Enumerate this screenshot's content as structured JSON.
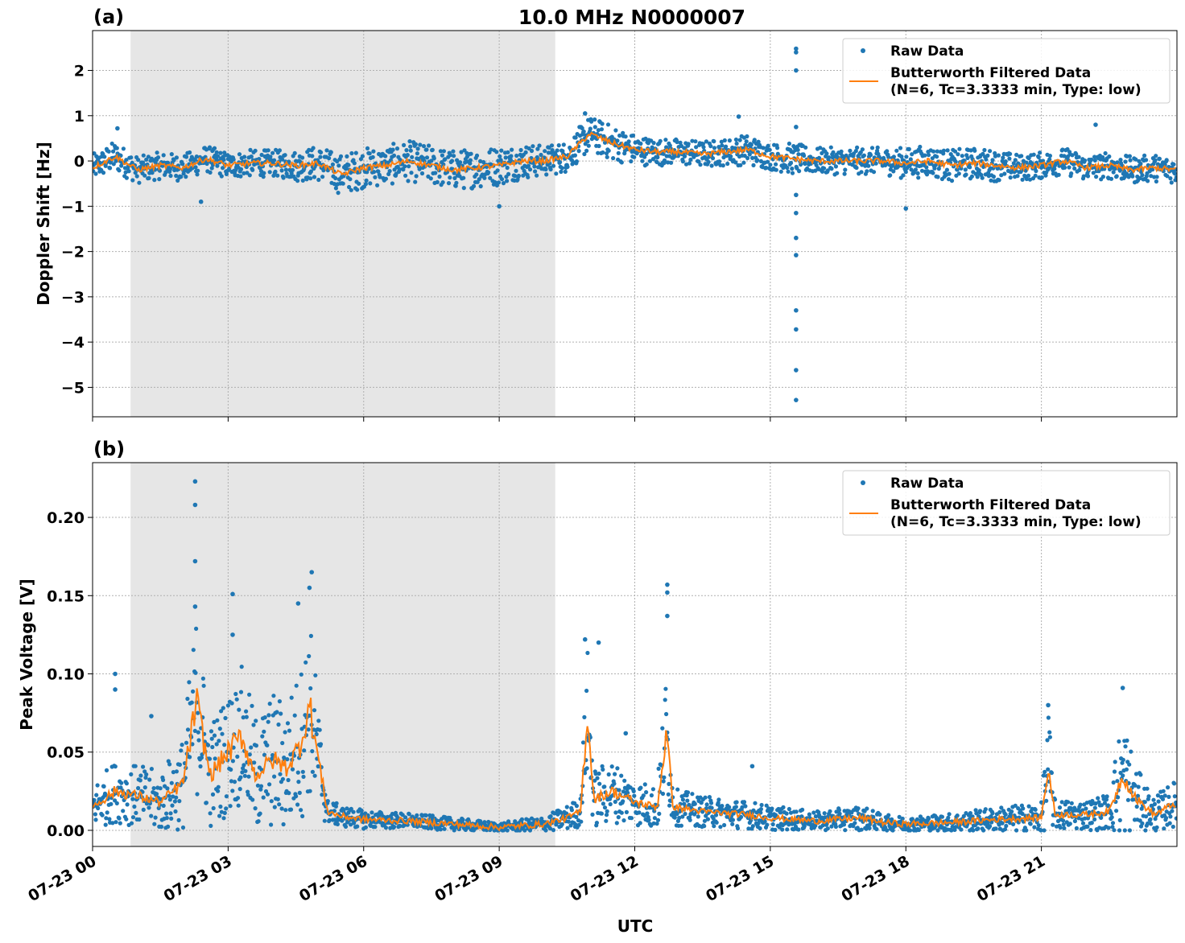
{
  "chart_data": {
    "type": "scatter",
    "title": "10.0 MHz N0000007",
    "xlabel": "UTC",
    "xlim_hours": [
      0,
      24
    ],
    "x_tick_labels": [
      "07-23 00",
      "07-23 03",
      "07-23 06",
      "07-23 09",
      "07-23 12",
      "07-23 15",
      "07-23 18",
      "07-23 21"
    ],
    "x_tick_hours": [
      0,
      3,
      6,
      9,
      12,
      15,
      18,
      21
    ],
    "shaded_interval_hours": [
      0.84,
      10.24
    ],
    "grid": true,
    "colors": {
      "raw": "#1f77b4",
      "filtered": "#ff7f0e",
      "shade": "#e6e6e6"
    },
    "legend": {
      "placement": "top-right",
      "raw_label": "Raw Data",
      "filtered_label_1": "Butterworth Filtered Data",
      "filtered_label_2": "(N=6, Tc=3.3333 min, Type: low)"
    },
    "panels": [
      {
        "panel_label": "(a)",
        "ylabel": "Doppler Shift [Hz]",
        "ylim": [
          -5.65,
          2.88
        ],
        "y_ticks": [
          2,
          1,
          0,
          -1,
          -2,
          -3,
          -4,
          -5
        ],
        "y_tick_labels": [
          "2",
          "1",
          "0",
          "−1",
          "−2",
          "−3",
          "−4",
          "−5"
        ],
        "hours": [
          0,
          0.5,
          1,
          1.5,
          2,
          2.5,
          3,
          3.5,
          4,
          4.5,
          5,
          5.5,
          6,
          6.5,
          7,
          7.5,
          8,
          8.5,
          9,
          9.5,
          10,
          10.5,
          11,
          11.5,
          12,
          12.5,
          13,
          13.5,
          14,
          14.5,
          15,
          15.5,
          16,
          16.5,
          17,
          17.5,
          18,
          18.5,
          19,
          19.5,
          20,
          20.5,
          21,
          21.5,
          22,
          22.5,
          23,
          23.5,
          24
        ],
        "filtered": [
          -0.15,
          0.1,
          -0.2,
          -0.1,
          -0.15,
          0.05,
          -0.1,
          -0.05,
          -0.05,
          -0.1,
          -0.05,
          -0.3,
          -0.15,
          -0.1,
          0.0,
          -0.1,
          -0.2,
          -0.15,
          -0.1,
          0.0,
          0.0,
          0.1,
          0.6,
          0.4,
          0.25,
          0.2,
          0.2,
          0.15,
          0.2,
          0.25,
          0.1,
          0.05,
          0.0,
          0.0,
          0.0,
          0.0,
          -0.05,
          0.0,
          -0.1,
          -0.05,
          -0.1,
          -0.15,
          -0.1,
          0.0,
          -0.15,
          -0.1,
          -0.2,
          -0.15,
          -0.2
        ],
        "raw_spread": [
          0.3,
          0.35,
          0.3,
          0.3,
          0.3,
          0.3,
          0.3,
          0.3,
          0.3,
          0.35,
          0.4,
          0.45,
          0.45,
          0.45,
          0.45,
          0.45,
          0.45,
          0.45,
          0.45,
          0.4,
          0.35,
          0.35,
          0.4,
          0.4,
          0.35,
          0.3,
          0.3,
          0.3,
          0.3,
          0.35,
          0.3,
          0.35,
          0.3,
          0.3,
          0.3,
          0.3,
          0.35,
          0.35,
          0.35,
          0.35,
          0.35,
          0.3,
          0.3,
          0.3,
          0.3,
          0.3,
          0.3,
          0.3,
          0.3
        ],
        "outliers": [
          [
            15.57,
            2.48
          ],
          [
            15.57,
            2.4
          ],
          [
            15.57,
            2.0
          ],
          [
            15.57,
            0.75
          ],
          [
            15.57,
            -0.75
          ],
          [
            15.57,
            -1.15
          ],
          [
            15.57,
            -1.7
          ],
          [
            15.57,
            -2.08
          ],
          [
            15.57,
            -3.3
          ],
          [
            15.57,
            -3.72
          ],
          [
            15.57,
            -4.62
          ],
          [
            15.57,
            -5.28
          ],
          [
            0.55,
            0.72
          ],
          [
            10.9,
            1.05
          ],
          [
            14.3,
            0.98
          ],
          [
            18.0,
            -1.05
          ],
          [
            22.2,
            0.8
          ],
          [
            9.0,
            -1.0
          ],
          [
            2.4,
            -0.9
          ]
        ]
      },
      {
        "panel_label": "(b)",
        "ylabel": "Peak Voltage [V]",
        "ylim": [
          -0.0103,
          0.235
        ],
        "y_ticks": [
          0.0,
          0.05,
          0.1,
          0.15,
          0.2
        ],
        "y_tick_labels": [
          "0.00",
          "0.05",
          "0.10",
          "0.15",
          "0.20"
        ],
        "hours": [
          0,
          0.5,
          1,
          1.5,
          2,
          2.3,
          2.6,
          3,
          3.3,
          3.6,
          4,
          4.3,
          4.6,
          4.8,
          5.0,
          5.2,
          5.5,
          6,
          7,
          8,
          9,
          10,
          10.5,
          10.8,
          10.95,
          11.1,
          11.5,
          12,
          12.5,
          12.7,
          12.85,
          13.5,
          14.5,
          15,
          16,
          17,
          17.5,
          18,
          19,
          20,
          21,
          21.15,
          21.3,
          22,
          22.5,
          22.8,
          23.1,
          23.5,
          24
        ],
        "filtered": [
          0.015,
          0.025,
          0.022,
          0.018,
          0.03,
          0.082,
          0.035,
          0.05,
          0.06,
          0.035,
          0.045,
          0.04,
          0.055,
          0.08,
          0.045,
          0.012,
          0.009,
          0.007,
          0.006,
          0.004,
          0.002,
          0.004,
          0.008,
          0.012,
          0.075,
          0.02,
          0.025,
          0.018,
          0.015,
          0.062,
          0.015,
          0.012,
          0.01,
          0.008,
          0.006,
          0.008,
          0.005,
          0.004,
          0.005,
          0.007,
          0.008,
          0.04,
          0.01,
          0.01,
          0.012,
          0.035,
          0.02,
          0.01,
          0.018
        ],
        "raw_spread": [
          0.015,
          0.02,
          0.02,
          0.02,
          0.03,
          0.06,
          0.035,
          0.04,
          0.045,
          0.04,
          0.045,
          0.045,
          0.05,
          0.06,
          0.04,
          0.008,
          0.007,
          0.006,
          0.005,
          0.004,
          0.003,
          0.005,
          0.008,
          0.01,
          0.045,
          0.02,
          0.02,
          0.015,
          0.015,
          0.045,
          0.012,
          0.01,
          0.009,
          0.008,
          0.006,
          0.008,
          0.005,
          0.005,
          0.006,
          0.008,
          0.01,
          0.04,
          0.01,
          0.01,
          0.012,
          0.045,
          0.02,
          0.012,
          0.015
        ],
        "outliers": [
          [
            2.27,
            0.223
          ],
          [
            2.27,
            0.208
          ],
          [
            2.27,
            0.172
          ],
          [
            2.27,
            0.143
          ],
          [
            3.1,
            0.151
          ],
          [
            3.1,
            0.125
          ],
          [
            4.55,
            0.145
          ],
          [
            4.85,
            0.165
          ],
          [
            4.8,
            0.155
          ],
          [
            10.9,
            0.122
          ],
          [
            11.2,
            0.12
          ],
          [
            12.72,
            0.157
          ],
          [
            12.72,
            0.152
          ],
          [
            12.72,
            0.137
          ],
          [
            0.5,
            0.1
          ],
          [
            0.5,
            0.09
          ],
          [
            1.3,
            0.073
          ],
          [
            22.8,
            0.091
          ],
          [
            21.15,
            0.08
          ],
          [
            14.6,
            0.041
          ],
          [
            11.8,
            0.062
          ]
        ]
      }
    ]
  }
}
